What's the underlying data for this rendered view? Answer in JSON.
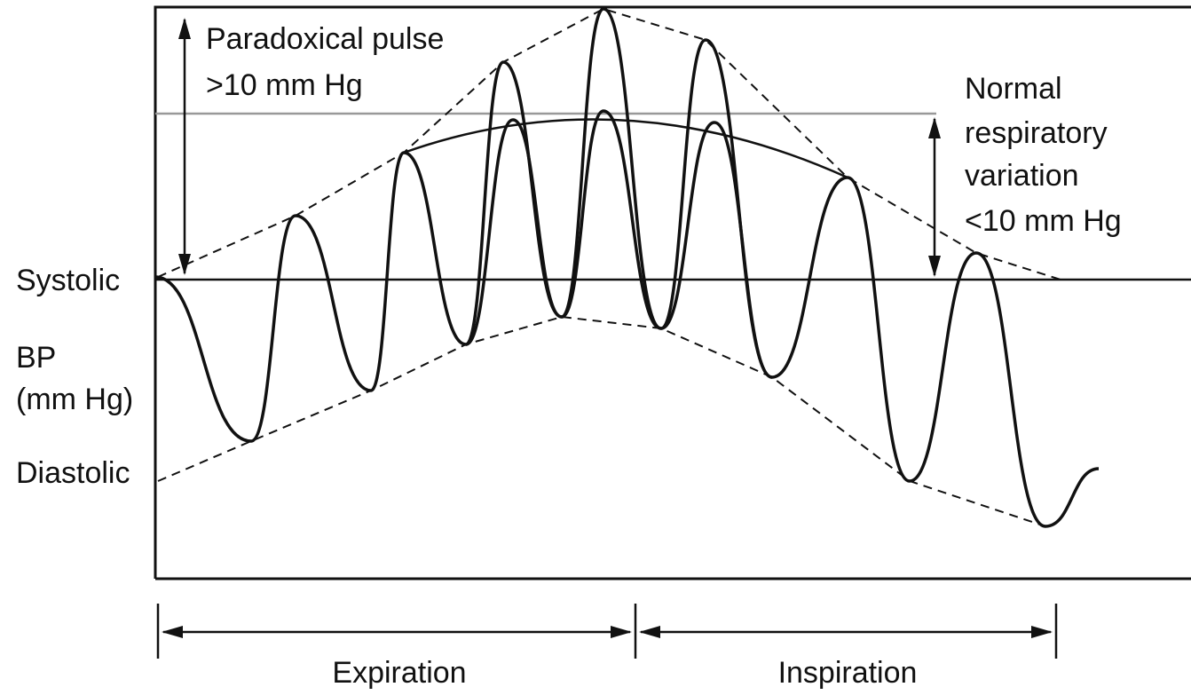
{
  "labels": {
    "paradoxical": [
      "Paradoxical pulse",
      ">10 mm Hg"
    ],
    "normal": [
      "Normal",
      "respiratory",
      "variation",
      "<10 mm Hg"
    ],
    "systolic": "Systolic",
    "bp": [
      "BP",
      "(mm Hg)"
    ],
    "diastolic": "Diastolic",
    "expiration": "Expiration",
    "inspiration": "Inspiration"
  }
}
